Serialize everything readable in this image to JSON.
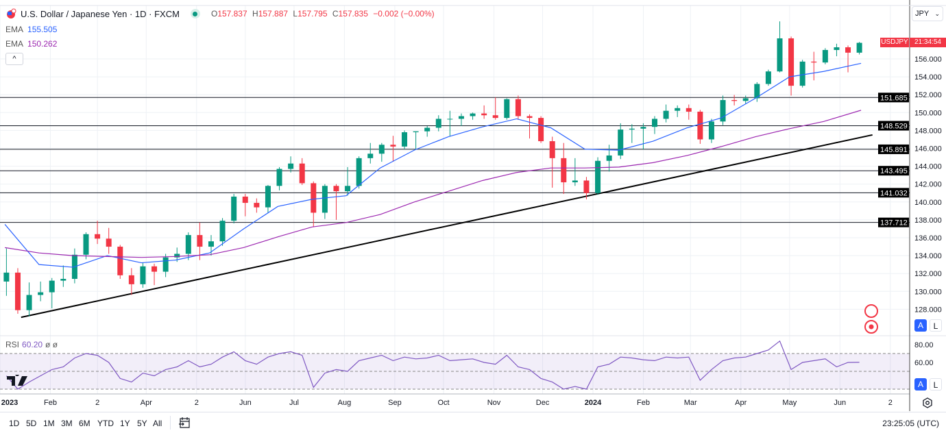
{
  "header": {
    "symbol_title": "U.S. Dollar / Japanese Yen · 1D · FXCM",
    "flag_icon": "us-jp-flag-icon",
    "status_color": "#089981",
    "ohlc": {
      "o_label": "O",
      "o": "157.837",
      "h_label": "H",
      "h": "157.887",
      "l_label": "L",
      "l": "157.795",
      "c_label": "C",
      "c": "157.835",
      "change": "−0.002 (−0.00%)"
    }
  },
  "indicators": [
    {
      "label": "EMA",
      "value": "155.505",
      "color": "#2962ff"
    },
    {
      "label": "EMA",
      "value": "150.262",
      "color": "#9c27b0"
    }
  ],
  "collapse_label": "^",
  "currency_select": {
    "value": "JPY"
  },
  "price_tag": {
    "symbol": "USDJPY",
    "countdown": "21:34:54",
    "color": "#f23645"
  },
  "scale_buttons": {
    "auto": "A",
    "log": "L"
  },
  "rsi_legend": {
    "label": "RSI",
    "value": "60.20",
    "extra1": "ø",
    "extra2": "ø"
  },
  "bottom_toolbar": {
    "ranges": [
      "1D",
      "5D",
      "1M",
      "3M",
      "6M",
      "YTD",
      "1Y",
      "5Y",
      "All"
    ],
    "clock": "23:25:05 (UTC)"
  },
  "chart_data": {
    "type": "candlestick",
    "up_color": "#089981",
    "down_color": "#f23645",
    "ylim": [
      126.5,
      162
    ],
    "yticks": [
      "128.000",
      "130.000",
      "132.000",
      "134.000",
      "136.000",
      "138.000",
      "140.000",
      "142.000",
      "144.000",
      "146.000",
      "148.000",
      "150.000",
      "152.000",
      "154.000",
      "156.000"
    ],
    "ytick_values": [
      128,
      130,
      132,
      134,
      136,
      138,
      140,
      142,
      144,
      146,
      148,
      150,
      152,
      154,
      156
    ],
    "xticks": [
      {
        "label": "2023",
        "date": "2023-01-01",
        "bold": true
      },
      {
        "label": "Feb",
        "date": "2023-02-01"
      },
      {
        "label": "2",
        "date": "2023-03-02"
      },
      {
        "label": "Apr",
        "date": "2023-04-01"
      },
      {
        "label": "2",
        "date": "2023-05-02"
      },
      {
        "label": "Jun",
        "date": "2023-06-01"
      },
      {
        "label": "Jul",
        "date": "2023-07-01"
      },
      {
        "label": "Aug",
        "date": "2023-08-01"
      },
      {
        "label": "Sep",
        "date": "2023-09-01"
      },
      {
        "label": "Oct",
        "date": "2023-10-01"
      },
      {
        "label": "Nov",
        "date": "2023-11-01"
      },
      {
        "label": "Dec",
        "date": "2023-12-01"
      },
      {
        "label": "2024",
        "date": "2024-01-01",
        "bold": true
      },
      {
        "label": "Feb",
        "date": "2024-02-01"
      },
      {
        "label": "Mar",
        "date": "2024-03-01"
      },
      {
        "label": "Apr",
        "date": "2024-04-01"
      },
      {
        "label": "May",
        "date": "2024-05-01"
      },
      {
        "label": "Jun",
        "date": "2024-06-01"
      },
      {
        "label": "2",
        "date": "2024-07-02"
      }
    ],
    "dates": [
      "2023-01-02",
      "2023-01-09",
      "2023-01-16",
      "2023-01-23",
      "2023-01-30",
      "2023-02-06",
      "2023-02-13",
      "2023-02-20",
      "2023-02-27",
      "2023-03-06",
      "2023-03-13",
      "2023-03-20",
      "2023-03-27",
      "2023-04-03",
      "2023-04-10",
      "2023-04-17",
      "2023-04-24",
      "2023-05-01",
      "2023-05-08",
      "2023-05-15",
      "2023-05-22",
      "2023-05-29",
      "2023-06-05",
      "2023-06-12",
      "2023-06-19",
      "2023-06-26",
      "2023-07-03",
      "2023-07-10",
      "2023-07-17",
      "2023-07-24",
      "2023-07-31",
      "2023-08-07",
      "2023-08-14",
      "2023-08-21",
      "2023-08-28",
      "2023-09-04",
      "2023-09-11",
      "2023-09-18",
      "2023-09-25",
      "2023-10-02",
      "2023-10-09",
      "2023-10-16",
      "2023-10-23",
      "2023-10-30",
      "2023-11-06",
      "2023-11-13",
      "2023-11-20",
      "2023-11-27",
      "2023-12-04",
      "2023-12-11",
      "2023-12-18",
      "2023-12-25",
      "2024-01-01",
      "2024-01-08",
      "2024-01-15",
      "2024-01-22",
      "2024-01-29",
      "2024-02-05",
      "2024-02-12",
      "2024-02-19",
      "2024-02-26",
      "2024-03-04",
      "2024-03-11",
      "2024-03-18",
      "2024-03-25",
      "2024-04-01",
      "2024-04-08",
      "2024-04-15",
      "2024-04-22",
      "2024-04-29",
      "2024-05-06",
      "2024-05-13",
      "2024-05-20",
      "2024-05-27",
      "2024-06-03",
      "2024-06-10"
    ],
    "ohlc": [
      [
        131.1,
        134.8,
        129.5,
        132.1
      ],
      [
        132.1,
        132.6,
        127.5,
        127.9
      ],
      [
        127.9,
        131.0,
        127.2,
        129.6
      ],
      [
        129.6,
        131.1,
        128.9,
        129.9
      ],
      [
        129.9,
        131.5,
        128.1,
        131.2
      ],
      [
        131.2,
        132.9,
        130.5,
        131.4
      ],
      [
        131.4,
        134.8,
        130.9,
        134.1
      ],
      [
        134.1,
        136.6,
        133.6,
        136.4
      ],
      [
        136.4,
        137.9,
        135.3,
        135.9
      ],
      [
        135.9,
        137.1,
        134.2,
        135.0
      ],
      [
        135.0,
        135.2,
        131.4,
        131.8
      ],
      [
        131.8,
        132.6,
        129.6,
        130.8
      ],
      [
        130.8,
        133.2,
        130.4,
        132.8
      ],
      [
        132.8,
        133.1,
        130.7,
        132.2
      ],
      [
        132.2,
        134.2,
        131.6,
        133.8
      ],
      [
        133.8,
        134.9,
        133.3,
        134.2
      ],
      [
        134.2,
        136.6,
        133.5,
        136.3
      ],
      [
        136.3,
        137.7,
        133.5,
        135.0
      ],
      [
        135.0,
        136.3,
        134.0,
        135.6
      ],
      [
        135.6,
        138.2,
        135.1,
        137.9
      ],
      [
        137.9,
        140.9,
        137.6,
        140.6
      ],
      [
        140.6,
        140.9,
        138.4,
        139.9
      ],
      [
        139.9,
        140.4,
        138.8,
        139.4
      ],
      [
        139.4,
        141.9,
        138.8,
        141.8
      ],
      [
        141.8,
        143.9,
        141.3,
        143.7
      ],
      [
        143.7,
        145.1,
        143.3,
        144.3
      ],
      [
        144.3,
        144.9,
        141.9,
        142.1
      ],
      [
        142.1,
        142.3,
        137.2,
        138.8
      ],
      [
        138.8,
        142.0,
        138.1,
        141.8
      ],
      [
        141.8,
        142.0,
        138.0,
        141.2
      ],
      [
        141.2,
        143.9,
        140.7,
        141.8
      ],
      [
        141.8,
        145.1,
        141.5,
        144.9
      ],
      [
        144.9,
        146.6,
        144.3,
        145.4
      ],
      [
        145.4,
        146.6,
        144.5,
        146.4
      ],
      [
        146.4,
        147.4,
        144.5,
        146.2
      ],
      [
        146.2,
        148.0,
        145.9,
        147.8
      ],
      [
        147.8,
        147.9,
        145.9,
        147.9
      ],
      [
        147.9,
        148.5,
        147.3,
        148.3
      ],
      [
        148.3,
        149.7,
        147.9,
        149.3
      ],
      [
        149.3,
        150.2,
        147.3,
        149.3
      ],
      [
        149.3,
        149.9,
        148.5,
        149.6
      ],
      [
        149.6,
        150.0,
        149.2,
        149.9
      ],
      [
        149.9,
        150.8,
        149.3,
        149.7
      ],
      [
        149.7,
        151.7,
        149.2,
        149.4
      ],
      [
        149.4,
        151.6,
        149.2,
        151.5
      ],
      [
        151.5,
        151.9,
        149.2,
        149.6
      ],
      [
        149.6,
        149.8,
        147.1,
        149.4
      ],
      [
        149.4,
        149.6,
        146.6,
        146.8
      ],
      [
        146.8,
        147.3,
        141.6,
        144.9
      ],
      [
        144.9,
        146.6,
        140.9,
        142.2
      ],
      [
        142.2,
        144.9,
        141.8,
        142.4
      ],
      [
        142.4,
        142.8,
        140.3,
        141.0
      ],
      [
        141.0,
        145.0,
        140.8,
        144.6
      ],
      [
        144.6,
        146.4,
        143.4,
        145.2
      ],
      [
        145.2,
        148.8,
        144.8,
        148.1
      ],
      [
        148.1,
        148.7,
        146.6,
        148.2
      ],
      [
        148.2,
        148.8,
        145.9,
        148.4
      ],
      [
        148.4,
        149.6,
        147.6,
        149.3
      ],
      [
        149.3,
        150.9,
        148.9,
        150.2
      ],
      [
        150.2,
        150.8,
        149.5,
        150.5
      ],
      [
        150.5,
        150.9,
        149.2,
        150.1
      ],
      [
        150.1,
        150.3,
        146.5,
        147.0
      ],
      [
        147.0,
        149.3,
        146.6,
        149.0
      ],
      [
        149.0,
        151.9,
        148.6,
        151.4
      ],
      [
        151.4,
        151.97,
        150.8,
        151.3
      ],
      [
        151.3,
        151.9,
        151.0,
        151.6
      ],
      [
        151.6,
        153.4,
        151.2,
        153.2
      ],
      [
        153.2,
        154.8,
        153.0,
        154.6
      ],
      [
        154.6,
        160.2,
        154.5,
        158.3
      ],
      [
        158.3,
        158.5,
        151.9,
        153.0
      ],
      [
        153.0,
        155.9,
        152.8,
        155.7
      ],
      [
        155.7,
        156.8,
        153.6,
        155.6
      ],
      [
        155.6,
        157.2,
        155.4,
        157.0
      ],
      [
        157.0,
        157.7,
        156.3,
        157.3
      ],
      [
        157.3,
        157.5,
        154.5,
        156.7
      ],
      [
        156.7,
        157.9,
        156.5,
        157.8
      ]
    ],
    "ema_fast": {
      "color": "#2962ff",
      "points": [
        [
          "2023-01-04",
          137.5
        ],
        [
          "2023-01-25",
          133.0
        ],
        [
          "2023-02-15",
          132.7
        ],
        [
          "2023-03-08",
          134.0
        ],
        [
          "2023-03-29",
          133.2
        ],
        [
          "2023-04-19",
          133.5
        ],
        [
          "2023-05-10",
          134.3
        ],
        [
          "2023-05-31",
          137.0
        ],
        [
          "2023-06-21",
          139.5
        ],
        [
          "2023-07-12",
          140.3
        ],
        [
          "2023-08-02",
          140.7
        ],
        [
          "2023-08-23",
          143.8
        ],
        [
          "2023-09-13",
          145.8
        ],
        [
          "2023-10-04",
          147.3
        ],
        [
          "2023-10-25",
          148.4
        ],
        [
          "2023-11-15",
          149.3
        ],
        [
          "2023-12-06",
          148.3
        ],
        [
          "2023-12-27",
          145.9
        ],
        [
          "2024-01-17",
          145.8
        ],
        [
          "2024-02-07",
          146.8
        ],
        [
          "2024-02-28",
          148.3
        ],
        [
          "2024-03-20",
          149.4
        ],
        [
          "2024-04-10",
          151.6
        ],
        [
          "2024-05-01",
          154.0
        ],
        [
          "2024-05-22",
          154.6
        ],
        [
          "2024-06-14",
          155.505
        ]
      ]
    },
    "ema_slow": {
      "color": "#9c27b0",
      "points": [
        [
          "2023-01-04",
          134.9
        ],
        [
          "2023-01-25",
          134.3
        ],
        [
          "2023-02-15",
          134.0
        ],
        [
          "2023-03-08",
          133.9
        ],
        [
          "2023-03-29",
          133.8
        ],
        [
          "2023-04-19",
          133.9
        ],
        [
          "2023-05-10",
          134.1
        ],
        [
          "2023-05-31",
          134.9
        ],
        [
          "2023-06-21",
          136.1
        ],
        [
          "2023-07-12",
          137.2
        ],
        [
          "2023-08-02",
          137.7
        ],
        [
          "2023-08-23",
          138.6
        ],
        [
          "2023-09-13",
          140.0
        ],
        [
          "2023-10-04",
          141.2
        ],
        [
          "2023-10-25",
          142.4
        ],
        [
          "2023-11-15",
          143.3
        ],
        [
          "2023-12-06",
          143.8
        ],
        [
          "2023-12-27",
          143.8
        ],
        [
          "2024-01-17",
          143.9
        ],
        [
          "2024-02-07",
          144.4
        ],
        [
          "2024-02-28",
          145.2
        ],
        [
          "2024-03-20",
          146.2
        ],
        [
          "2024-04-10",
          147.3
        ],
        [
          "2024-05-01",
          148.2
        ],
        [
          "2024-05-22",
          149.0
        ],
        [
          "2024-06-14",
          150.262
        ]
      ]
    },
    "horizontal_levels": [
      151.685,
      148.529,
      145.891,
      143.495,
      141.032,
      137.712
    ],
    "horizontal_level_labels": [
      "151.685",
      "148.529",
      "145.891",
      "143.495",
      "141.032",
      "137.712"
    ],
    "trendline": [
      [
        "2023-01-14",
        127.1
      ],
      [
        "2024-06-21",
        147.5
      ]
    ],
    "rsi": {
      "color": "#7e57c2",
      "ylim": [
        25,
        90
      ],
      "yticks": [
        "80.00",
        "60.00"
      ],
      "ytick_values": [
        80,
        60
      ],
      "bands": [
        70,
        50,
        30
      ],
      "values": [
        45,
        30,
        38,
        45,
        52,
        55,
        65,
        70,
        68,
        60,
        42,
        38,
        48,
        45,
        52,
        55,
        62,
        55,
        58,
        66,
        72,
        62,
        58,
        66,
        70,
        72,
        68,
        32,
        48,
        52,
        50,
        62,
        65,
        68,
        62,
        66,
        64,
        65,
        68,
        62,
        63,
        64,
        60,
        58,
        68,
        55,
        52,
        42,
        38,
        30,
        33,
        30,
        55,
        58,
        66,
        65,
        63,
        62,
        66,
        65,
        66,
        40,
        52,
        62,
        65,
        66,
        70,
        74,
        84,
        52,
        60,
        62,
        64,
        55,
        60,
        60.2
      ]
    }
  }
}
